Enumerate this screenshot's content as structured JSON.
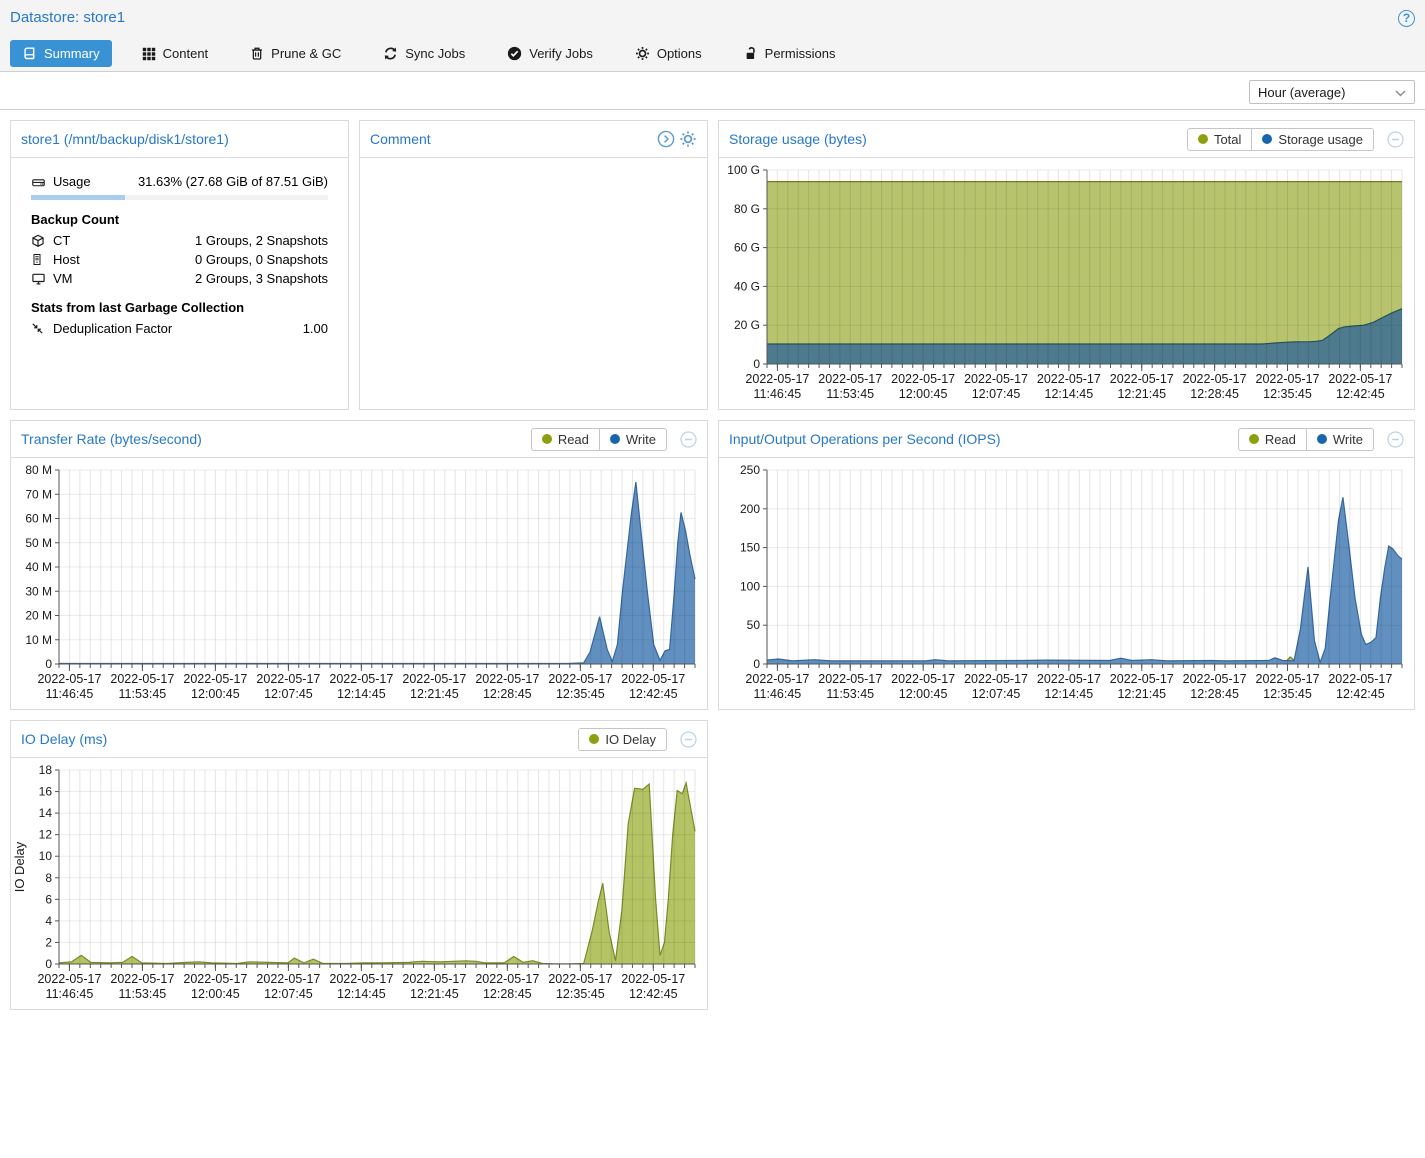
{
  "header": {
    "title": "Datastore: store1",
    "help_label": "?"
  },
  "tabs": {
    "items": [
      {
        "label": "Summary",
        "icon": "book-icon",
        "active": true
      },
      {
        "label": "Content",
        "icon": "grid-icon",
        "active": false
      },
      {
        "label": "Prune & GC",
        "icon": "trash-icon",
        "active": false
      },
      {
        "label": "Sync Jobs",
        "icon": "sync-icon",
        "active": false
      },
      {
        "label": "Verify Jobs",
        "icon": "check-circle-icon",
        "active": false
      },
      {
        "label": "Options",
        "icon": "gear-icon",
        "active": false
      },
      {
        "label": "Permissions",
        "icon": "unlock-icon",
        "active": false
      }
    ]
  },
  "toolbar": {
    "range_value": "Hour (average)"
  },
  "datastore_panel": {
    "title": "store1 (/mnt/backup/disk1/store1)",
    "usage": {
      "label": "Usage",
      "value": "31.63% (27.68 GiB of 87.51 GiB)",
      "percent": 31.63
    },
    "backup_count": {
      "heading": "Backup Count",
      "rows": [
        {
          "icon": "cube-icon",
          "label": "CT",
          "value": "1 Groups, 2 Snapshots"
        },
        {
          "icon": "server-icon",
          "label": "Host",
          "value": "0 Groups, 0 Snapshots"
        },
        {
          "icon": "desktop-icon",
          "label": "VM",
          "value": "2 Groups, 3 Snapshots"
        }
      ]
    },
    "gc_stats": {
      "heading": "Stats from last Garbage Collection",
      "rows": [
        {
          "icon": "compress-icon",
          "label": "Deduplication Factor",
          "value": "1.00"
        }
      ]
    }
  },
  "comment_panel": {
    "title": "Comment",
    "value": ""
  },
  "colors": {
    "accent_blue": "#3892d4",
    "title_blue": "#2878c8",
    "legend_olive": "#8c9f0e",
    "legend_blue": "#1766ad",
    "area_green_fill": "#b8c46d",
    "area_green_stroke": "#6d7d20",
    "area_teal_fill": "#4d7a8c",
    "area_teal_stroke": "#24505f",
    "area_blue_fill": "#6190c0",
    "area_blue_stroke": "#33679e",
    "progress_fill": "#a9cdec"
  },
  "chart_data": [
    {
      "type": "area",
      "title": "Storage usage (bytes)",
      "legend": [
        {
          "label": "Total",
          "color": "#8c9f0e"
        },
        {
          "label": "Storage usage",
          "color": "#1766ad"
        }
      ],
      "ylim": [
        0,
        100
      ],
      "yticks": [
        {
          "v": 100,
          "label": "100 G"
        },
        {
          "v": 80,
          "label": "80 G"
        },
        {
          "v": 60,
          "label": "60 G"
        },
        {
          "v": 40,
          "label": "40 G"
        },
        {
          "v": 20,
          "label": "20 G"
        },
        {
          "v": 0,
          "label": "0"
        }
      ],
      "xticks": {
        "date": "2022-05-17",
        "times": [
          "11:46:45",
          "11:53:45",
          "12:00:45",
          "12:07:45",
          "12:14:45",
          "12:21:45",
          "12:28:45",
          "12:35:45",
          "12:42:45"
        ],
        "positions": [
          0.0164,
          0.1311,
          0.2459,
          0.3607,
          0.4754,
          0.5902,
          0.7049,
          0.8197,
          0.9344
        ]
      },
      "series": [
        {
          "name": "Total",
          "fill": "#b8c46d",
          "stroke": "#6d7d20",
          "points": [
            [
              0,
              94
            ],
            [
              1,
              94
            ]
          ]
        },
        {
          "name": "Storage usage",
          "fill": "#4d7a8c",
          "stroke": "#24505f",
          "points": [
            [
              0,
              10.3
            ],
            [
              0.78,
              10.3
            ],
            [
              0.8,
              10.8
            ],
            [
              0.815,
              11.2
            ],
            [
              0.83,
              11.4
            ],
            [
              0.855,
              11.5
            ],
            [
              0.865,
              11.7
            ],
            [
              0.875,
              12.2
            ],
            [
              0.885,
              14.5
            ],
            [
              0.9,
              18.3
            ],
            [
              0.91,
              19.2
            ],
            [
              0.925,
              19.6
            ],
            [
              0.94,
              20
            ],
            [
              0.955,
              21.5
            ],
            [
              0.97,
              24
            ],
            [
              0.985,
              26.5
            ],
            [
              1,
              28.5
            ]
          ]
        }
      ]
    },
    {
      "type": "area",
      "title": "Transfer Rate (bytes/second)",
      "legend": [
        {
          "label": "Read",
          "color": "#8c9f0e"
        },
        {
          "label": "Write",
          "color": "#1766ad"
        }
      ],
      "ylim": [
        0,
        80
      ],
      "yticks": [
        {
          "v": 80,
          "label": "80 M"
        },
        {
          "v": 70,
          "label": "70 M"
        },
        {
          "v": 60,
          "label": "60 M"
        },
        {
          "v": 50,
          "label": "50 M"
        },
        {
          "v": 40,
          "label": "40 M"
        },
        {
          "v": 30,
          "label": "30 M"
        },
        {
          "v": 20,
          "label": "20 M"
        },
        {
          "v": 10,
          "label": "10 M"
        },
        {
          "v": 0,
          "label": "0"
        }
      ],
      "xticks": {
        "date": "2022-05-17",
        "times": [
          "11:46:45",
          "11:53:45",
          "12:00:45",
          "12:07:45",
          "12:14:45",
          "12:21:45",
          "12:28:45",
          "12:35:45",
          "12:42:45"
        ],
        "positions": [
          0.0164,
          0.1311,
          0.2459,
          0.3607,
          0.4754,
          0.5902,
          0.7049,
          0.8197,
          0.9344
        ]
      },
      "series": [
        {
          "name": "Read",
          "fill": "#b8c46d",
          "stroke": "#6d7d20",
          "points": [
            [
              0,
              0.15
            ],
            [
              1,
              0.15
            ]
          ]
        },
        {
          "name": "Write",
          "fill": "#6190c0",
          "stroke": "#33679e",
          "points": [
            [
              0,
              0.2
            ],
            [
              0.8,
              0.2
            ],
            [
              0.825,
              0.5
            ],
            [
              0.835,
              5
            ],
            [
              0.85,
              19.5
            ],
            [
              0.862,
              6
            ],
            [
              0.87,
              1
            ],
            [
              0.878,
              8
            ],
            [
              0.886,
              30
            ],
            [
              0.9,
              62
            ],
            [
              0.907,
              75
            ],
            [
              0.915,
              55
            ],
            [
              0.925,
              30
            ],
            [
              0.935,
              8
            ],
            [
              0.945,
              1.5
            ],
            [
              0.953,
              5.5
            ],
            [
              0.96,
              6
            ],
            [
              0.967,
              28
            ],
            [
              0.973,
              50
            ],
            [
              0.978,
              62.5
            ],
            [
              0.985,
              55
            ],
            [
              0.992,
              45
            ],
            [
              1,
              35
            ]
          ]
        }
      ]
    },
    {
      "type": "area",
      "title": "Input/Output Operations per Second (IOPS)",
      "legend": [
        {
          "label": "Read",
          "color": "#8c9f0e"
        },
        {
          "label": "Write",
          "color": "#1766ad"
        }
      ],
      "ylim": [
        0,
        250
      ],
      "yticks": [
        {
          "v": 250,
          "label": "250"
        },
        {
          "v": 200,
          "label": "200"
        },
        {
          "v": 150,
          "label": "150"
        },
        {
          "v": 100,
          "label": "100"
        },
        {
          "v": 50,
          "label": "50"
        },
        {
          "v": 0,
          "label": "0"
        }
      ],
      "xticks": {
        "date": "2022-05-17",
        "times": [
          "11:46:45",
          "11:53:45",
          "12:00:45",
          "12:07:45",
          "12:14:45",
          "12:21:45",
          "12:28:45",
          "12:35:45",
          "12:42:45"
        ],
        "positions": [
          0.0164,
          0.1311,
          0.2459,
          0.3607,
          0.4754,
          0.5902,
          0.7049,
          0.8197,
          0.9344
        ]
      },
      "series": [
        {
          "name": "Read",
          "fill": "#b8c46d",
          "stroke": "#6d7d20",
          "points": [
            [
              0,
              1
            ],
            [
              0.805,
              1
            ],
            [
              0.816,
              2
            ],
            [
              0.824,
              9
            ],
            [
              0.834,
              2
            ],
            [
              0.845,
              1
            ],
            [
              1,
              1
            ]
          ]
        },
        {
          "name": "Write",
          "fill": "#6190c0",
          "stroke": "#33679e",
          "points": [
            [
              0,
              5
            ],
            [
              0.018,
              6.5
            ],
            [
              0.04,
              4
            ],
            [
              0.075,
              5.5
            ],
            [
              0.1,
              4
            ],
            [
              0.25,
              4
            ],
            [
              0.265,
              5.5
            ],
            [
              0.285,
              4
            ],
            [
              0.4,
              4.5
            ],
            [
              0.44,
              5
            ],
            [
              0.54,
              4.5
            ],
            [
              0.557,
              7.5
            ],
            [
              0.575,
              4.5
            ],
            [
              0.605,
              5.5
            ],
            [
              0.63,
              4
            ],
            [
              0.7,
              4.5
            ],
            [
              0.72,
              4
            ],
            [
              0.79,
              4.5
            ],
            [
              0.8,
              8
            ],
            [
              0.812,
              4.5
            ],
            [
              0.83,
              4
            ],
            [
              0.84,
              45
            ],
            [
              0.852,
              125
            ],
            [
              0.862,
              30
            ],
            [
              0.871,
              2
            ],
            [
              0.879,
              20
            ],
            [
              0.887,
              85
            ],
            [
              0.9,
              185
            ],
            [
              0.907,
              215
            ],
            [
              0.916,
              155
            ],
            [
              0.926,
              85
            ],
            [
              0.936,
              38
            ],
            [
              0.943,
              25
            ],
            [
              0.951,
              28
            ],
            [
              0.959,
              34
            ],
            [
              0.966,
              85
            ],
            [
              0.973,
              125
            ],
            [
              0.979,
              152
            ],
            [
              0.986,
              148
            ],
            [
              0.993,
              140
            ],
            [
              1,
              135
            ]
          ]
        }
      ]
    },
    {
      "type": "area",
      "title": "IO Delay (ms)",
      "ylabel": "IO Delay",
      "legend": [
        {
          "label": "IO Delay",
          "color": "#8c9f0e"
        }
      ],
      "ylim": [
        0,
        18
      ],
      "yticks": [
        {
          "v": 18,
          "label": "18"
        },
        {
          "v": 16,
          "label": "16"
        },
        {
          "v": 14,
          "label": "14"
        },
        {
          "v": 12,
          "label": "12"
        },
        {
          "v": 10,
          "label": "10"
        },
        {
          "v": 8,
          "label": "8"
        },
        {
          "v": 6,
          "label": "6"
        },
        {
          "v": 4,
          "label": "4"
        },
        {
          "v": 2,
          "label": "2"
        },
        {
          "v": 0,
          "label": "0"
        }
      ],
      "xticks": {
        "date": "2022-05-17",
        "times": [
          "11:46:45",
          "11:53:45",
          "12:00:45",
          "12:07:45",
          "12:14:45",
          "12:21:45",
          "12:28:45",
          "12:35:45",
          "12:42:45"
        ],
        "positions": [
          0.0164,
          0.1311,
          0.2459,
          0.3607,
          0.4754,
          0.5902,
          0.7049,
          0.8197,
          0.9344
        ]
      },
      "series": [
        {
          "name": "IO Delay",
          "fill": "#b4c464",
          "stroke": "#7a8b27",
          "points": [
            [
              0,
              0.1
            ],
            [
              0.02,
              0.2
            ],
            [
              0.035,
              0.8
            ],
            [
              0.05,
              0.15
            ],
            [
              0.08,
              0.1
            ],
            [
              0.1,
              0.15
            ],
            [
              0.115,
              0.7
            ],
            [
              0.13,
              0.1
            ],
            [
              0.17,
              0.05
            ],
            [
              0.2,
              0.15
            ],
            [
              0.22,
              0.2
            ],
            [
              0.24,
              0.1
            ],
            [
              0.28,
              0.05
            ],
            [
              0.3,
              0.2
            ],
            [
              0.36,
              0.1
            ],
            [
              0.37,
              0.55
            ],
            [
              0.385,
              0.1
            ],
            [
              0.4,
              0.45
            ],
            [
              0.415,
              0.05
            ],
            [
              0.45,
              0.05
            ],
            [
              0.48,
              0.1
            ],
            [
              0.5,
              0.1
            ],
            [
              0.55,
              0.15
            ],
            [
              0.57,
              0.25
            ],
            [
              0.6,
              0.2
            ],
            [
              0.62,
              0.25
            ],
            [
              0.64,
              0.3
            ],
            [
              0.655,
              0.25
            ],
            [
              0.67,
              0.1
            ],
            [
              0.7,
              0.1
            ],
            [
              0.715,
              0.7
            ],
            [
              0.73,
              0.15
            ],
            [
              0.745,
              0.3
            ],
            [
              0.76,
              0.05
            ],
            [
              0.78,
              0.02
            ],
            [
              0.8,
              0.02
            ],
            [
              0.825,
              0.05
            ],
            [
              0.838,
              3
            ],
            [
              0.848,
              5.8
            ],
            [
              0.855,
              7.5
            ],
            [
              0.865,
              3
            ],
            [
              0.875,
              0.3
            ],
            [
              0.885,
              5
            ],
            [
              0.895,
              13
            ],
            [
              0.905,
              16.3
            ],
            [
              0.918,
              16.2
            ],
            [
              0.928,
              16.7
            ],
            [
              0.938,
              6
            ],
            [
              0.945,
              0.8
            ],
            [
              0.952,
              2
            ],
            [
              0.958,
              6
            ],
            [
              0.965,
              12
            ],
            [
              0.972,
              16.1
            ],
            [
              0.98,
              15.8
            ],
            [
              0.986,
              16.8
            ],
            [
              1,
              12.3
            ]
          ]
        }
      ]
    }
  ]
}
